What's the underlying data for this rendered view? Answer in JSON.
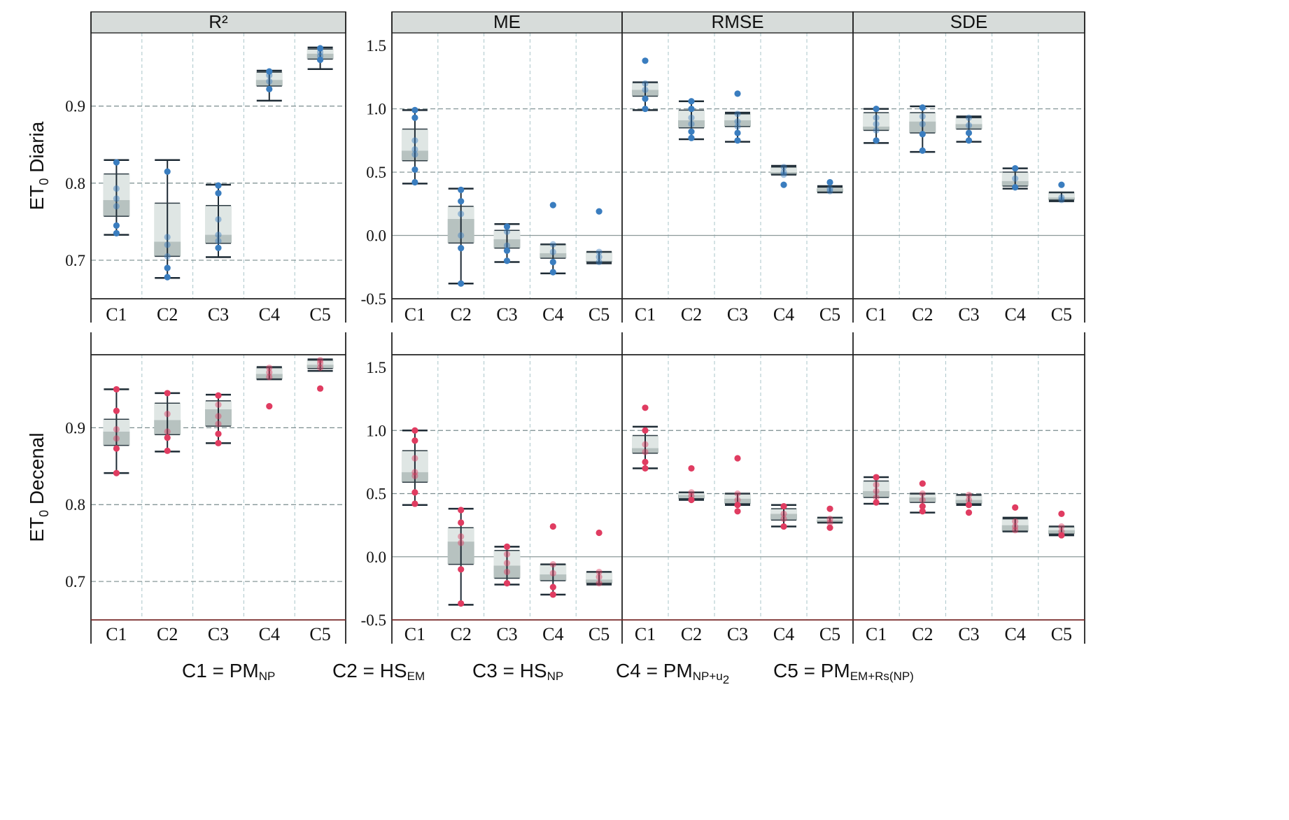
{
  "chart_data": {
    "type": "boxplot",
    "layout": "facet grid",
    "categories": [
      "C1",
      "C2",
      "C3",
      "C4",
      "C5"
    ],
    "metrics": [
      {
        "key": "R2",
        "label": "R²",
        "ylim": [
          0.65,
          0.995
        ],
        "yticks": [
          "0.7",
          "0.8",
          "0.9"
        ]
      },
      {
        "key": "ME",
        "label": "ME",
        "ylim": [
          -0.5,
          1.6
        ],
        "yticks": [
          "-0.5",
          "0.0",
          "0.5",
          "1.0",
          "1.5"
        ]
      },
      {
        "key": "RMSE",
        "label": "RMSE"
      },
      {
        "key": "SDE",
        "label": "SDE"
      }
    ],
    "colors": {
      "diaria": "#3a7dbf",
      "decenal": "#e03c61"
    },
    "rows": [
      {
        "key": "diaria",
        "label_main": "ET",
        "label_sub": "0",
        "label_rest": " Diaria",
        "color": "#3a7dbf",
        "panels": {
          "R2": [
            {
              "cat": "C1",
              "min": 0.733,
              "q1": 0.757,
              "median": 0.778,
              "q3": 0.812,
              "max": 0.83,
              "points": [
                0.827,
                0.793,
                0.78,
                0.77,
                0.745,
                0.735
              ]
            },
            {
              "cat": "C2",
              "min": 0.677,
              "q1": 0.705,
              "median": 0.724,
              "q3": 0.774,
              "max": 0.83,
              "points": [
                0.815,
                0.73,
                0.72,
                0.705,
                0.69,
                0.678
              ]
            },
            {
              "cat": "C3",
              "min": 0.704,
              "q1": 0.722,
              "median": 0.733,
              "q3": 0.771,
              "max": 0.798,
              "points": [
                0.797,
                0.787,
                0.753,
                0.733,
                0.725,
                0.716
              ]
            },
            {
              "cat": "C4",
              "min": 0.907,
              "q1": 0.926,
              "median": 0.934,
              "q3": 0.944,
              "max": 0.946,
              "points": [
                0.945,
                0.94,
                0.932,
                0.922
              ]
            },
            {
              "cat": "C5",
              "min": 0.948,
              "q1": 0.961,
              "median": 0.968,
              "q3": 0.974,
              "max": 0.976,
              "points": [
                0.975,
                0.97,
                0.965,
                0.96
              ]
            }
          ],
          "ME": [
            {
              "cat": "C1",
              "min": 0.41,
              "q1": 0.59,
              "median": 0.67,
              "q3": 0.84,
              "max": 0.99,
              "points": [
                0.99,
                0.93,
                0.75,
                0.68,
                0.64,
                0.52,
                0.42
              ]
            },
            {
              "cat": "C2",
              "min": -0.38,
              "q1": -0.06,
              "median": 0.13,
              "q3": 0.23,
              "max": 0.37,
              "points": [
                0.36,
                0.27,
                0.17,
                0.0,
                -0.1,
                -0.38
              ]
            },
            {
              "cat": "C3",
              "min": -0.21,
              "q1": -0.1,
              "median": -0.03,
              "q3": 0.04,
              "max": 0.09,
              "points": [
                0.07,
                0.03,
                -0.08,
                -0.12,
                -0.2
              ]
            },
            {
              "cat": "C4",
              "min": -0.3,
              "q1": -0.18,
              "median": -0.14,
              "q3": -0.07,
              "max": -0.07,
              "points": [
                0.24,
                -0.07,
                -0.13,
                -0.21,
                -0.29
              ]
            },
            {
              "cat": "C5",
              "min": -0.22,
              "q1": -0.21,
              "median": -0.2,
              "q3": -0.13,
              "max": -0.13,
              "points": [
                0.19,
                -0.13,
                -0.17,
                -0.21
              ]
            }
          ],
          "RMSE": [
            {
              "cat": "C1",
              "min": 0.99,
              "q1": 1.1,
              "median": 1.15,
              "q3": 1.21,
              "max": 1.21,
              "points": [
                1.38,
                1.2,
                1.15,
                1.08,
                1.0
              ]
            },
            {
              "cat": "C2",
              "min": 0.76,
              "q1": 0.85,
              "median": 0.91,
              "q3": 0.99,
              "max": 1.06,
              "points": [
                1.06,
                1.0,
                0.93,
                0.88,
                0.82,
                0.77
              ]
            },
            {
              "cat": "C3",
              "min": 0.74,
              "q1": 0.86,
              "median": 0.91,
              "q3": 0.96,
              "max": 0.97,
              "points": [
                1.12,
                0.96,
                0.9,
                0.86,
                0.81,
                0.75
              ]
            },
            {
              "cat": "C4",
              "min": 0.48,
              "q1": 0.48,
              "median": 0.5,
              "q3": 0.54,
              "max": 0.55,
              "points": [
                0.54,
                0.5,
                0.48,
                0.4
              ]
            },
            {
              "cat": "C5",
              "min": 0.34,
              "q1": 0.34,
              "median": 0.37,
              "q3": 0.38,
              "max": 0.39,
              "points": [
                0.42,
                0.37,
                0.35
              ]
            }
          ],
          "SDE": [
            {
              "cat": "C1",
              "min": 0.73,
              "q1": 0.83,
              "median": 0.86,
              "q3": 0.97,
              "max": 1.0,
              "points": [
                1.0,
                0.93,
                0.88,
                0.83,
                0.75
              ]
            },
            {
              "cat": "C2",
              "min": 0.66,
              "q1": 0.81,
              "median": 0.9,
              "q3": 0.97,
              "max": 1.02,
              "points": [
                1.01,
                0.94,
                0.88,
                0.8,
                0.67
              ]
            },
            {
              "cat": "C3",
              "min": 0.74,
              "q1": 0.84,
              "median": 0.88,
              "q3": 0.93,
              "max": 0.94,
              "points": [
                0.93,
                0.87,
                0.81,
                0.75
              ]
            },
            {
              "cat": "C4",
              "min": 0.37,
              "q1": 0.39,
              "median": 0.43,
              "q3": 0.5,
              "max": 0.53,
              "points": [
                0.53,
                0.45,
                0.38
              ]
            },
            {
              "cat": "C5",
              "min": 0.27,
              "q1": 0.28,
              "median": 0.3,
              "q3": 0.34,
              "max": 0.34,
              "points": [
                0.4,
                0.3,
                0.28
              ]
            }
          ]
        }
      },
      {
        "key": "decenal",
        "label_main": "ET",
        "label_sub": "0",
        "label_rest": " Decenal",
        "color": "#e03c61",
        "panels": {
          "R2": [
            {
              "cat": "C1",
              "min": 0.841,
              "q1": 0.877,
              "median": 0.895,
              "q3": 0.911,
              "max": 0.95,
              "points": [
                0.95,
                0.922,
                0.898,
                0.886,
                0.873,
                0.841
              ]
            },
            {
              "cat": "C2",
              "min": 0.869,
              "q1": 0.891,
              "median": 0.91,
              "q3": 0.932,
              "max": 0.945,
              "points": [
                0.945,
                0.918,
                0.895,
                0.887,
                0.87
              ]
            },
            {
              "cat": "C3",
              "min": 0.88,
              "q1": 0.902,
              "median": 0.924,
              "q3": 0.935,
              "max": 0.943,
              "points": [
                0.942,
                0.93,
                0.915,
                0.905,
                0.892,
                0.88
              ]
            },
            {
              "cat": "C4",
              "min": 0.963,
              "q1": 0.963,
              "median": 0.97,
              "q3": 0.978,
              "max": 0.979,
              "points": [
                0.978,
                0.972,
                0.966,
                0.928
              ]
            },
            {
              "cat": "C5",
              "min": 0.974,
              "q1": 0.977,
              "median": 0.982,
              "q3": 0.988,
              "max": 0.989,
              "points": [
                0.988,
                0.984,
                0.978,
                0.951
              ]
            }
          ],
          "ME": [
            {
              "cat": "C1",
              "min": 0.41,
              "q1": 0.59,
              "median": 0.67,
              "q3": 0.84,
              "max": 1.0,
              "points": [
                1.0,
                0.92,
                0.78,
                0.67,
                0.64,
                0.51,
                0.42
              ]
            },
            {
              "cat": "C2",
              "min": -0.38,
              "q1": -0.06,
              "median": 0.12,
              "q3": 0.23,
              "max": 0.38,
              "points": [
                0.37,
                0.27,
                0.16,
                0.11,
                -0.1,
                -0.37
              ]
            },
            {
              "cat": "C3",
              "min": -0.22,
              "q1": -0.17,
              "median": -0.07,
              "q3": 0.05,
              "max": 0.08,
              "points": [
                0.08,
                0.02,
                -0.05,
                -0.12,
                -0.21
              ]
            },
            {
              "cat": "C4",
              "min": -0.3,
              "q1": -0.19,
              "median": -0.14,
              "q3": -0.06,
              "max": -0.06,
              "points": [
                0.24,
                -0.06,
                -0.13,
                -0.24,
                -0.3
              ]
            },
            {
              "cat": "C5",
              "min": -0.22,
              "q1": -0.21,
              "median": -0.18,
              "q3": -0.12,
              "max": -0.12,
              "points": [
                0.19,
                -0.12,
                -0.16,
                -0.21
              ]
            }
          ],
          "RMSE": [
            {
              "cat": "C1",
              "min": 0.7,
              "q1": 0.82,
              "median": 0.86,
              "q3": 0.96,
              "max": 1.03,
              "points": [
                1.18,
                1.0,
                0.89,
                0.83,
                0.75,
                0.7
              ]
            },
            {
              "cat": "C2",
              "min": 0.45,
              "q1": 0.46,
              "median": 0.49,
              "q3": 0.51,
              "max": 0.51,
              "points": [
                0.7,
                0.51,
                0.48,
                0.45
              ]
            },
            {
              "cat": "C3",
              "min": 0.41,
              "q1": 0.42,
              "median": 0.46,
              "q3": 0.5,
              "max": 0.5,
              "points": [
                0.78,
                0.5,
                0.45,
                0.41,
                0.36
              ]
            },
            {
              "cat": "C4",
              "min": 0.24,
              "q1": 0.29,
              "median": 0.34,
              "q3": 0.38,
              "max": 0.41,
              "points": [
                0.4,
                0.34,
                0.3,
                0.24
              ]
            },
            {
              "cat": "C5",
              "min": 0.27,
              "q1": 0.27,
              "median": 0.29,
              "q3": 0.31,
              "max": 0.31,
              "points": [
                0.38,
                0.3,
                0.27,
                0.23
              ]
            }
          ],
          "SDE": [
            {
              "cat": "C1",
              "min": 0.42,
              "q1": 0.47,
              "median": 0.52,
              "q3": 0.6,
              "max": 0.63,
              "points": [
                0.63,
                0.57,
                0.52,
                0.47,
                0.43
              ]
            },
            {
              "cat": "C2",
              "min": 0.35,
              "q1": 0.43,
              "median": 0.47,
              "q3": 0.5,
              "max": 0.5,
              "points": [
                0.58,
                0.5,
                0.45,
                0.4,
                0.36
              ]
            },
            {
              "cat": "C3",
              "min": 0.41,
              "q1": 0.42,
              "median": 0.45,
              "q3": 0.49,
              "max": 0.49,
              "points": [
                0.49,
                0.45,
                0.41,
                0.35
              ]
            },
            {
              "cat": "C4",
              "min": 0.2,
              "q1": 0.2,
              "median": 0.25,
              "q3": 0.3,
              "max": 0.31,
              "points": [
                0.39,
                0.28,
                0.24,
                0.21
              ]
            },
            {
              "cat": "C5",
              "min": 0.17,
              "q1": 0.18,
              "median": 0.21,
              "q3": 0.24,
              "max": 0.24,
              "points": [
                0.34,
                0.24,
                0.2,
                0.17
              ]
            }
          ]
        }
      }
    ],
    "legend": [
      {
        "cat": "C1",
        "main": "C1 = PM",
        "sub": "NP"
      },
      {
        "cat": "C2",
        "main": "C2 = HS",
        "sub": "EM"
      },
      {
        "cat": "C3",
        "main": "C3 = HS",
        "sub": "NP"
      },
      {
        "cat": "C4",
        "main": "C4 = PM",
        "sub": "NP+u",
        "sub2": "2"
      },
      {
        "cat": "C5",
        "main": "C5 = PM",
        "sub": "EM+Rs(NP)"
      }
    ]
  }
}
